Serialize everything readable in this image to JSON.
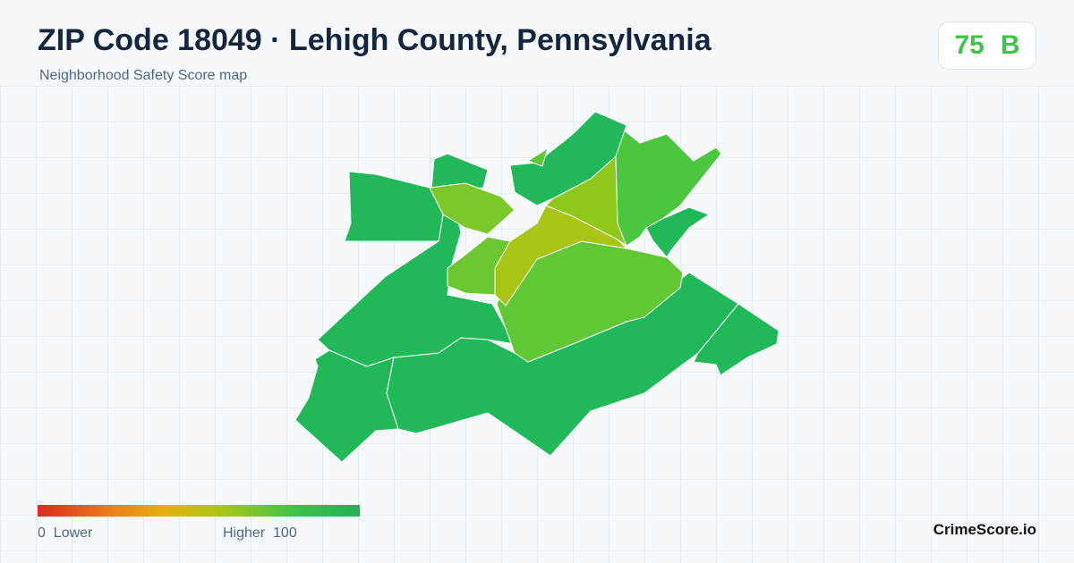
{
  "header": {
    "title": "ZIP Code 18049 · Lehigh County, Pennsylvania",
    "subtitle": "Neighborhood Safety Score map"
  },
  "score": {
    "value": 75,
    "grade": "B"
  },
  "legend": {
    "min": 0,
    "min_label": "Lower",
    "max_label": "Higher",
    "max": 100
  },
  "footer": {
    "brand": "CrimeScore.io"
  }
}
